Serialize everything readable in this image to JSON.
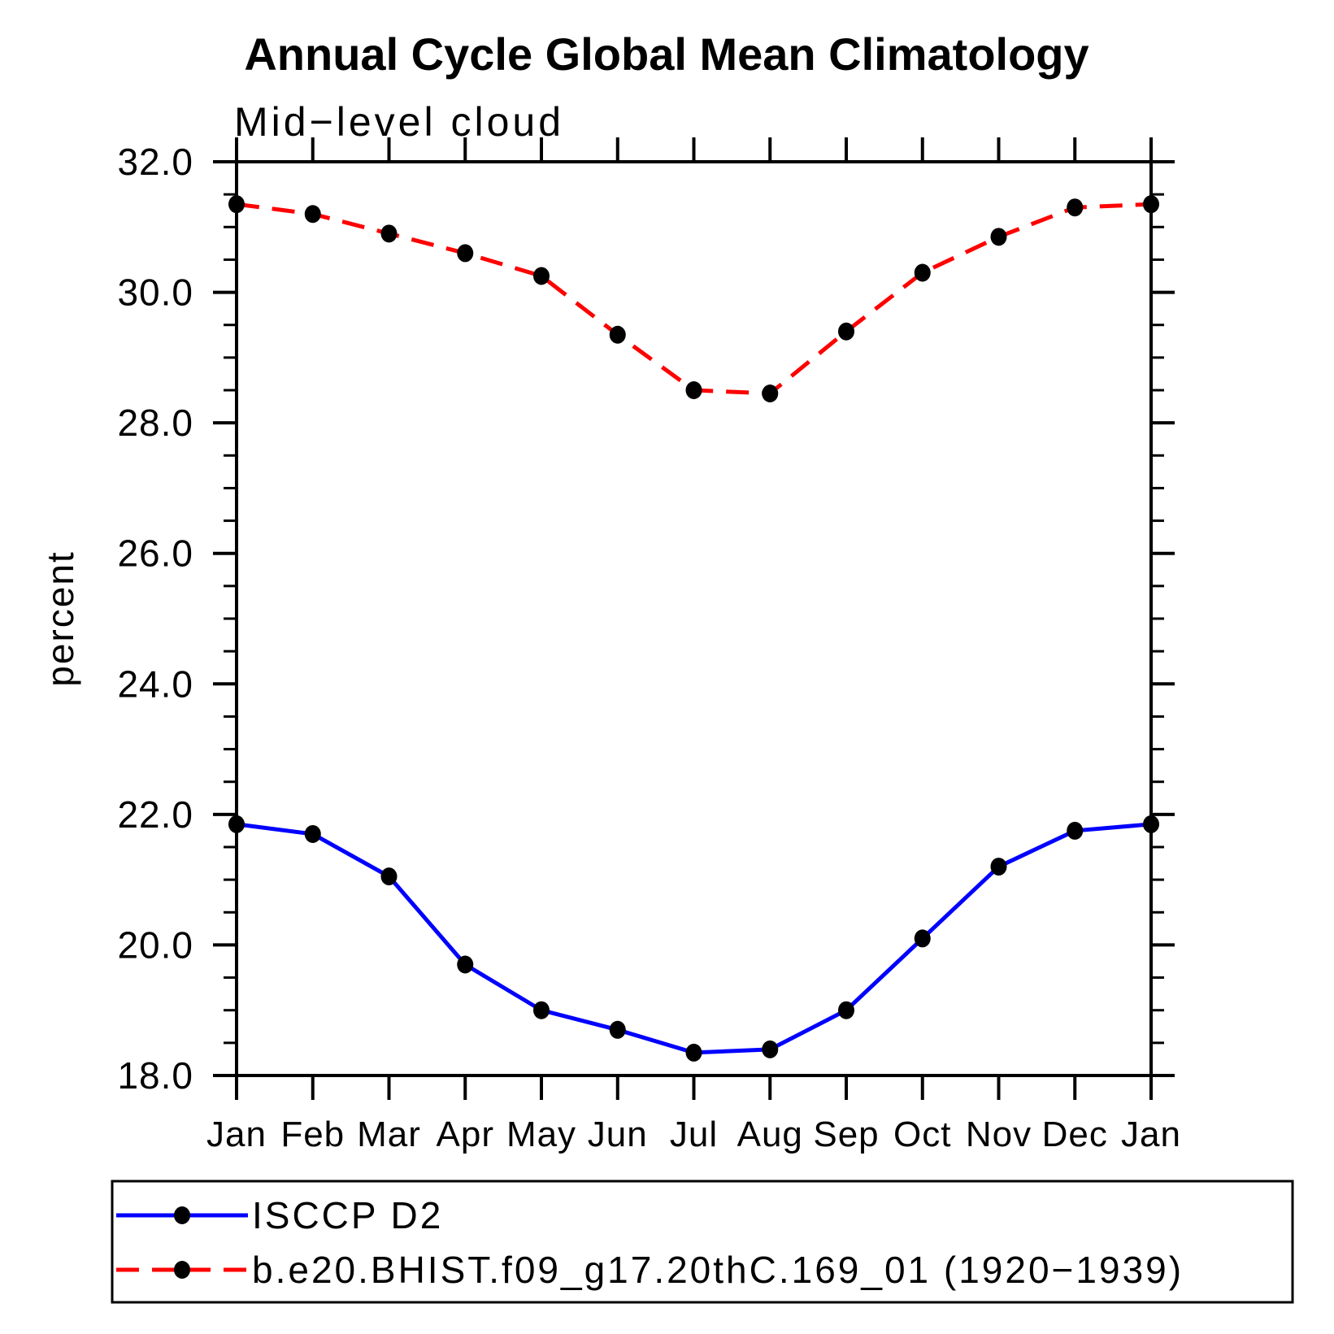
{
  "chart_data": {
    "type": "line",
    "title": "Annual Cycle Global Mean Climatology",
    "subtitle": "Mid−level cloud",
    "ylabel": "percent",
    "xlabel": "",
    "categories": [
      "Jan",
      "Feb",
      "Mar",
      "Apr",
      "May",
      "Jun",
      "Jul",
      "Aug",
      "Sep",
      "Oct",
      "Nov",
      "Dec",
      "Jan"
    ],
    "series": [
      {
        "name": "ISCCP D2",
        "line_color": "#0000ff",
        "line_style": "solid",
        "marker": "filled-circle",
        "marker_color": "#000000",
        "values": [
          21.85,
          21.7,
          21.05,
          19.7,
          19.0,
          18.7,
          18.35,
          18.4,
          19.0,
          20.1,
          21.2,
          21.75,
          21.85
        ]
      },
      {
        "name": "b.e20.BHIST.f09_g17.20thC.169_01 (1920−1939)",
        "line_color": "#ff0000",
        "line_style": "dashed",
        "marker": "filled-circle",
        "marker_color": "#000000",
        "values": [
          31.35,
          31.2,
          30.9,
          30.6,
          30.25,
          29.35,
          28.5,
          28.45,
          29.4,
          30.3,
          30.85,
          31.3,
          31.35
        ]
      }
    ],
    "ylim": [
      18.0,
      32.0
    ],
    "ytick_labels": [
      "18.0",
      "20.0",
      "22.0",
      "24.0",
      "26.0",
      "28.0",
      "30.0",
      "32.0"
    ],
    "ytick_values": [
      18.0,
      20.0,
      22.0,
      24.0,
      26.0,
      28.0,
      30.0,
      32.0
    ],
    "yminor_interval": 0.5,
    "grid": false,
    "legend_position": "bottom-left-box",
    "axis_color": "#000000",
    "background_color": "#ffffff"
  }
}
